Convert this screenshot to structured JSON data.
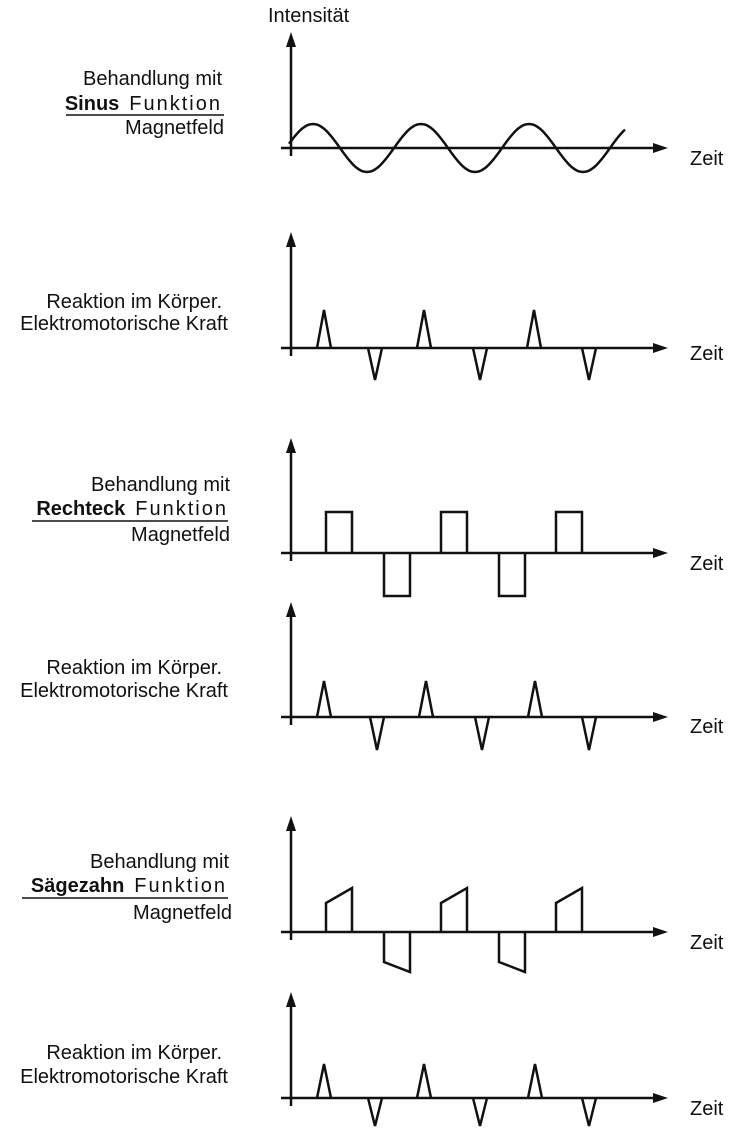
{
  "y_axis_label": "Intensität",
  "panels": [
    {
      "line1": "Behandlung mit",
      "function_name": "Sinus",
      "function_word": "Funktion",
      "line3": "Magnetfeld",
      "x_axis_label": "Zeit"
    },
    {
      "line1": "Reaktion im Körper.",
      "line2": "Elektromotorische Kraft",
      "x_axis_label": "Zeit"
    },
    {
      "line1": "Behandlung mit",
      "function_name": "Rechteck",
      "function_word": "Funktion",
      "line3": "Magnetfeld",
      "x_axis_label": "Zeit"
    },
    {
      "line1": "Reaktion im Körper.",
      "line2": "Elektromotorische Kraft",
      "x_axis_label": "Zeit"
    },
    {
      "line1": "Behandlung mit",
      "function_name": "Sägezahn",
      "function_word": "Funktion",
      "line3": "Magnetfeld",
      "x_axis_label": "Zeit"
    },
    {
      "line1": "Reaktion im Körper.",
      "line2": "Elektromotorische Kraft",
      "x_axis_label": "Zeit"
    }
  ]
}
